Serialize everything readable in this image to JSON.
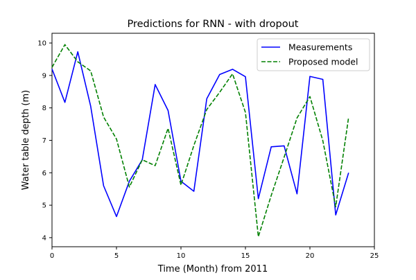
{
  "chart_data": {
    "type": "line",
    "title": "Predictions for RNN - with dropout",
    "xlabel": "Time (Month) from 2011",
    "ylabel": "Water table depth (m)",
    "xlim": [
      0,
      25
    ],
    "ylim": [
      3.72,
      10.3
    ],
    "xticks": [
      0,
      5,
      10,
      15,
      20,
      25
    ],
    "yticks": [
      4,
      5,
      6,
      7,
      8,
      9,
      10
    ],
    "grid": false,
    "legend_position": "top-right",
    "x": [
      0,
      1,
      2,
      3,
      4,
      5,
      6,
      7,
      8,
      9,
      10,
      11,
      12,
      13,
      14,
      15,
      16,
      17,
      18,
      19,
      20,
      21,
      22,
      23
    ],
    "series": [
      {
        "name": "Measurements",
        "color": "#0000ff",
        "style": "solid",
        "values": [
          9.2,
          8.17,
          9.73,
          8.05,
          5.6,
          4.65,
          5.74,
          6.4,
          8.72,
          7.92,
          5.74,
          5.43,
          8.28,
          9.03,
          9.19,
          8.96,
          5.2,
          6.8,
          6.83,
          5.35,
          8.97,
          8.88,
          4.7,
          6.0
        ]
      },
      {
        "name": "Proposed model",
        "color": "#008000",
        "style": "dashed",
        "values": [
          9.25,
          9.95,
          9.42,
          9.14,
          7.72,
          7.04,
          5.56,
          6.4,
          6.22,
          7.37,
          5.62,
          6.84,
          7.95,
          8.48,
          9.05,
          7.86,
          4.03,
          5.3,
          6.48,
          7.69,
          8.35,
          6.99,
          4.95,
          7.71
        ]
      }
    ]
  }
}
